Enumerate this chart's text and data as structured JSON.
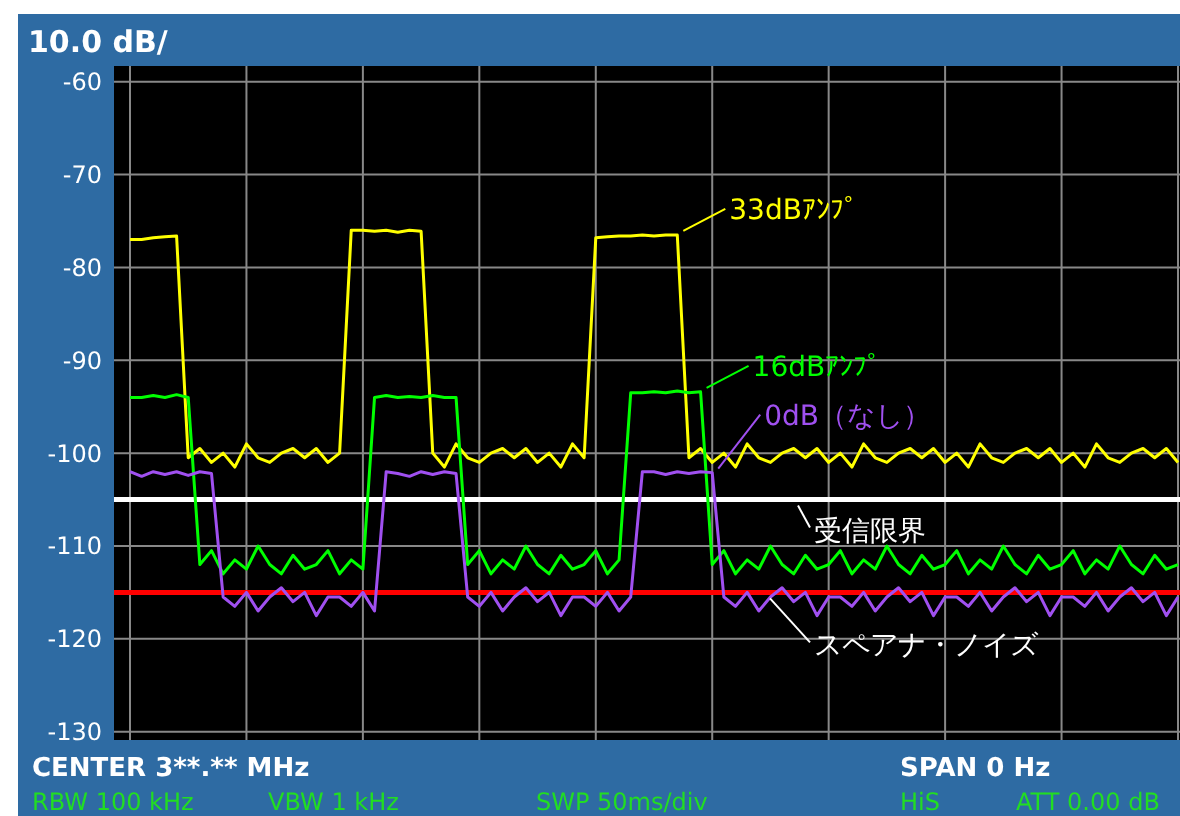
{
  "chart_data": {
    "type": "line",
    "title": "10.0 dB/",
    "categories": [
      null,
      null,
      null,
      null,
      null,
      null,
      null,
      null,
      null,
      null,
      null,
      null,
      null,
      null,
      null,
      null,
      null,
      null,
      null,
      null,
      null,
      null,
      null,
      null,
      null,
      null,
      null,
      null,
      null,
      null,
      null,
      null,
      null,
      null,
      null,
      null,
      null,
      null,
      null,
      null,
      null,
      null,
      null,
      null,
      null,
      null,
      null,
      null,
      null,
      null,
      null,
      null,
      null,
      null,
      null,
      null,
      null,
      null,
      null,
      null,
      null,
      null,
      null,
      null,
      null,
      null,
      null,
      null,
      null,
      null,
      null,
      null,
      null,
      null,
      null,
      null,
      null,
      null,
      null,
      null,
      null,
      null,
      null,
      null,
      null,
      null,
      null,
      null,
      null,
      null,
      null
    ],
    "series": [
      {
        "name": "33dBｱﾝﾌﾟ",
        "color": "#ffff00",
        "values": [
          -77,
          -77,
          -76.8,
          -76.7,
          -76.6,
          -100.5,
          -99.5,
          -101,
          -100,
          -101.5,
          -99,
          -100.5,
          -101,
          -100,
          -99.5,
          -100.5,
          -99.5,
          -101,
          -100,
          -76,
          -76,
          -76.1,
          -76,
          -76.2,
          -76,
          -76.1,
          -100,
          -101.5,
          -99,
          -100.5,
          -101,
          -100,
          -99.5,
          -100.5,
          -99.5,
          -101,
          -100,
          -101.5,
          -99,
          -100.5,
          -76.8,
          -76.7,
          -76.6,
          -76.6,
          -76.5,
          -76.6,
          -76.5,
          -76.5,
          -100.5,
          -99.5,
          -101,
          -100,
          -101.5,
          -99,
          -100.5,
          -101,
          -100,
          -99.5,
          -100.5,
          -99.5,
          -101,
          -100,
          -101.5,
          -99,
          -100.5,
          -101,
          -100,
          -99.5,
          -100.5,
          -99.5,
          -101,
          -100,
          -101.5,
          -99,
          -100.5,
          -101,
          -100,
          -99.5,
          -100.5,
          -99.5,
          -101,
          -100,
          -101.5,
          -99,
          -100.5,
          -101,
          -100,
          -99.5,
          -100.5,
          -99.5,
          -101
        ]
      },
      {
        "name": "16dBｱﾝﾌﾟ",
        "color": "#00ff00",
        "values": [
          -94,
          -94,
          -93.8,
          -94,
          -93.7,
          -94,
          -112,
          -110.5,
          -113,
          -111.5,
          -112.5,
          -110,
          -112,
          -113,
          -111,
          -112.5,
          -112,
          -110.5,
          -113,
          -111.5,
          -112.5,
          -94,
          -93.8,
          -94,
          -93.9,
          -94,
          -93.8,
          -94,
          -94,
          -112,
          -110.5,
          -113,
          -111.5,
          -112.5,
          -110,
          -112,
          -113,
          -111,
          -112.5,
          -112,
          -110.5,
          -113,
          -111.5,
          -93.5,
          -93.5,
          -93.4,
          -93.5,
          -93.3,
          -93.5,
          -93.4,
          -112,
          -110.5,
          -113,
          -111.5,
          -112.5,
          -110,
          -112,
          -113,
          -111,
          -112.5,
          -112,
          -110.5,
          -113,
          -111.5,
          -112.5,
          -110,
          -112,
          -113,
          -111,
          -112.5,
          -112,
          -110.5,
          -113,
          -111.5,
          -112.5,
          -110,
          -112,
          -113,
          -111,
          -112.5,
          -112,
          -110.5,
          -113,
          -111.5,
          -112.5,
          -110,
          -112,
          -113,
          -111,
          -112.5,
          -112
        ]
      },
      {
        "name": "0dB（なし）",
        "color": "#a050f0",
        "values": [
          -102,
          -102.5,
          -102,
          -102.3,
          -102,
          -102.4,
          -102,
          -102.2,
          -115.5,
          -116.5,
          -115,
          -117,
          -115.5,
          -114.5,
          -116,
          -115,
          -117.5,
          -115.5,
          -115.5,
          -116.5,
          -115,
          -117,
          -102,
          -102.2,
          -102.5,
          -102,
          -102.3,
          -102,
          -102.2,
          -115.5,
          -116.5,
          -115,
          -117,
          -115.5,
          -114.5,
          -116,
          -115,
          -117.5,
          -115.5,
          -115.5,
          -116.5,
          -115,
          -117,
          -115.5,
          -102,
          -102,
          -102.3,
          -102,
          -102.2,
          -102,
          -102.1,
          -115.5,
          -116.5,
          -115,
          -117,
          -115.5,
          -114.5,
          -116,
          -115,
          -117.5,
          -115.5,
          -115.5,
          -116.5,
          -115,
          -117,
          -115.5,
          -114.5,
          -116,
          -115,
          -117.5,
          -115.5,
          -115.5,
          -116.5,
          -115,
          -117,
          -115.5,
          -114.5,
          -116,
          -115,
          -117.5,
          -115.5,
          -115.5,
          -116.5,
          -115,
          -117,
          -115.5,
          -114.5,
          -116,
          -115,
          -117.5,
          -115.5
        ]
      }
    ],
    "ylim": [
      -130.9,
      -58.3
    ],
    "yticks": [
      -60,
      -70,
      -80,
      -90,
      -100,
      -110,
      -120,
      -130
    ],
    "ref_lines": [
      {
        "axis": "y",
        "value": -105,
        "label": "受信限界",
        "color": "#ffffff"
      },
      {
        "axis": "y",
        "value": -115,
        "label": "スペアナ・ノイズ",
        "color": "#ff0000"
      }
    ],
    "annotations": [
      "CENTER  3**.** MHz",
      "SPAN 0 Hz",
      "RBW 100 kHz",
      "VBW 1 kHz",
      "SWP 50ms/div",
      "HiS",
      "ATT 0.00 dB"
    ],
    "grid": true,
    "legend": "right",
    "tick_labels": "y",
    "marker": "none",
    "line_style": "solid"
  }
}
